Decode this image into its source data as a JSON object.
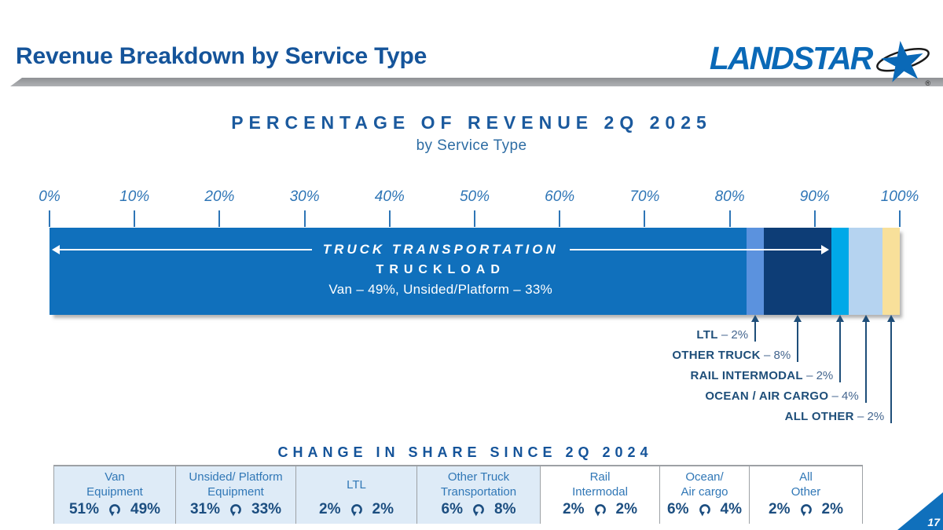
{
  "header": {
    "title": "Revenue Breakdown by Service Type",
    "logo_text": "LANDSTAR",
    "logo_registered": "®"
  },
  "chart_data": {
    "type": "bar",
    "stacked": true,
    "orientation": "horizontal",
    "title": "PERCENTAGE OF REVENUE 2Q 2025",
    "subtitle": "by Service Type",
    "axis_ticks": [
      "0%",
      "10%",
      "20%",
      "30%",
      "40%",
      "50%",
      "60%",
      "70%",
      "80%",
      "90%",
      "100%"
    ],
    "xlim": [
      0,
      100
    ],
    "dash_separator": "–",
    "segments": [
      {
        "name": "Truckload",
        "value": 82,
        "color": "#1070BC"
      },
      {
        "name": "LTL",
        "value": 2,
        "color": "#5B92DE"
      },
      {
        "name": "Other Truck",
        "value": 8,
        "color": "#0D3D76"
      },
      {
        "name": "Rail Intermodal",
        "value": 2,
        "color": "#00A9E8"
      },
      {
        "name": "Ocean / Air Cargo",
        "value": 4,
        "color": "#B5D3F0"
      },
      {
        "name": "All Other",
        "value": 2,
        "color": "#F8E09A"
      }
    ],
    "truck_transportation": {
      "label": "TRUCK TRANSPORTATION",
      "span_percent": 92
    },
    "truckload": {
      "label": "TRUCKLOAD",
      "van_percent": 49,
      "unsided_platform_percent": 33,
      "detail": "Van – 49%, Unsided/Platform – 33%"
    },
    "callouts": [
      {
        "label": "LTL",
        "value": "2%",
        "arrow_percent": 83
      },
      {
        "label": "OTHER TRUCK",
        "value": "8%",
        "arrow_percent": 88
      },
      {
        "label": "RAIL INTERMODAL",
        "value": "2%",
        "arrow_percent": 93
      },
      {
        "label": "OCEAN / AIR CARGO",
        "value": "4%",
        "arrow_percent": 96
      },
      {
        "label": "ALL OTHER",
        "value": "2%",
        "arrow_percent": 99
      }
    ]
  },
  "change_table": {
    "title": "CHANGE IN SHARE SINCE 2Q 2024",
    "columns": [
      {
        "label_lines": [
          "Van",
          "Equipment"
        ],
        "from": "51%",
        "to": "49%",
        "highlighted": true
      },
      {
        "label_lines": [
          "Unsided/ Platform",
          "Equipment"
        ],
        "from": "31%",
        "to": "33%",
        "highlighted": true
      },
      {
        "label_lines": [
          "LTL"
        ],
        "from": "2%",
        "to": "2%",
        "highlighted": true
      },
      {
        "label_lines": [
          "Other Truck",
          "Transportation"
        ],
        "from": "6%",
        "to": "8%",
        "highlighted": true
      },
      {
        "label_lines": [
          "Rail",
          "Intermodal"
        ],
        "from": "2%",
        "to": "2%",
        "highlighted": false
      },
      {
        "label_lines": [
          "Ocean/",
          "Air cargo"
        ],
        "from": "6%",
        "to": "4%",
        "highlighted": false
      },
      {
        "label_lines": [
          "All",
          "Other"
        ],
        "from": "2%",
        "to": "2%",
        "highlighted": false
      }
    ]
  },
  "footer": {
    "page_number": "17"
  }
}
